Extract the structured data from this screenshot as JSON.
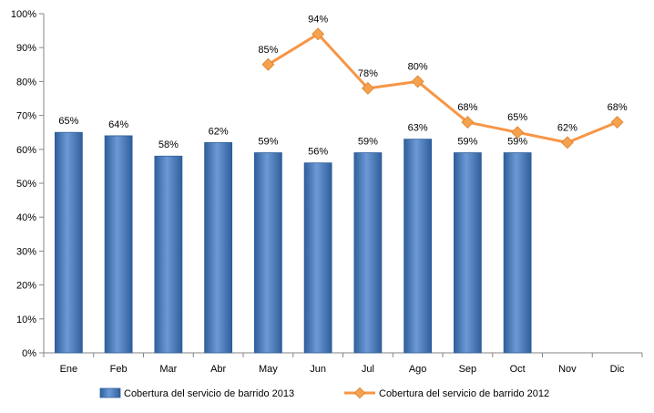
{
  "chart_data": {
    "type": "bar",
    "categories": [
      "Ene",
      "Feb",
      "Mar",
      "Abr",
      "May",
      "Jun",
      "Jul",
      "Ago",
      "Sep",
      "Oct",
      "Nov",
      "Dic"
    ],
    "series": [
      {
        "name": "Cobertura del servicio de barrido 2013",
        "type": "bar",
        "color": "#4F81BD",
        "values": [
          65,
          64,
          58,
          62,
          59,
          56,
          59,
          63,
          59,
          59,
          null,
          null
        ],
        "labels": [
          "65%",
          "64%",
          "58%",
          "62%",
          "59%",
          "56%",
          "59%",
          "63%",
          "59%",
          "59%",
          null,
          null
        ]
      },
      {
        "name": "Cobertura del servicio de barrido 2012",
        "type": "line",
        "color": "#F79646",
        "values": [
          null,
          null,
          null,
          null,
          85,
          94,
          78,
          80,
          68,
          65,
          62,
          68
        ],
        "labels": [
          null,
          null,
          null,
          null,
          "85%",
          "94%",
          "78%",
          "80%",
          "68%",
          "65%",
          "62%",
          "68%"
        ]
      }
    ],
    "ylim": [
      0,
      100
    ],
    "yticks": [
      "0%",
      "10%",
      "20%",
      "30%",
      "40%",
      "50%",
      "60%",
      "70%",
      "80%",
      "90%",
      "100%"
    ],
    "grid": false,
    "legend": "bottom"
  }
}
